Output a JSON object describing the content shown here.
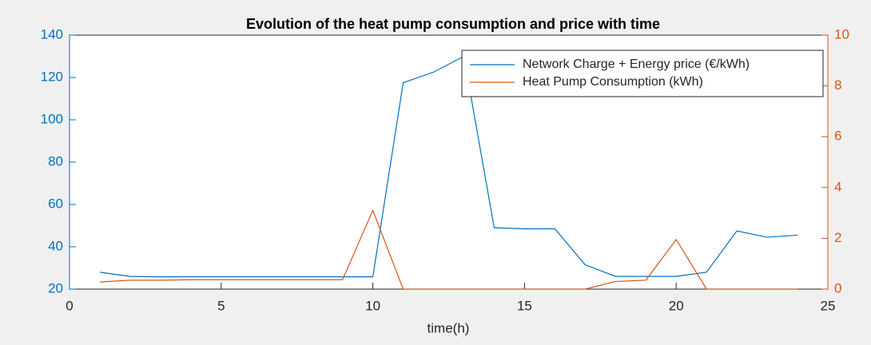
{
  "chart_data": {
    "type": "line",
    "title": "Evolution of the heat pump consumption and price with time",
    "x_label": "time(h)",
    "x": [
      1,
      2,
      3,
      4,
      5,
      6,
      7,
      8,
      9,
      10,
      11,
      12,
      13,
      14,
      15,
      16,
      17,
      18,
      19,
      20,
      21,
      22,
      23,
      24
    ],
    "series": [
      {
        "name": "Network Charge + Energy price (€/kWh)",
        "color": "#0072bd",
        "values": [
          28,
          26,
          25.8,
          25.8,
          25.8,
          25.8,
          25.8,
          25.8,
          25.8,
          25.8,
          117.5,
          122.5,
          130,
          49,
          48.5,
          48.5,
          31.5,
          26,
          26,
          26,
          28,
          47.5,
          44.5,
          45.5
        ]
      },
      {
        "name": "Heat Pump Consumption (kWh)",
        "color": "#d95319",
        "axis": "y2",
        "values": [
          0.28,
          0.35,
          0.35,
          0.37,
          0.37,
          0.37,
          0.37,
          0.37,
          0.37,
          3.1,
          0,
          0,
          0,
          0,
          0,
          0,
          0,
          0.3,
          0.35,
          1.95,
          0,
          0,
          0,
          0
        ]
      }
    ],
    "xlim": [
      0,
      25
    ],
    "xticks": [
      0,
      5,
      10,
      15,
      20,
      25
    ],
    "ylim": [
      20,
      140
    ],
    "yticks": [
      20,
      40,
      60,
      80,
      100,
      120,
      140
    ],
    "y2lim": [
      0,
      10
    ],
    "y2ticks": [
      0,
      2,
      4,
      6,
      8,
      10
    ],
    "grid": false,
    "legend": "northeast"
  }
}
